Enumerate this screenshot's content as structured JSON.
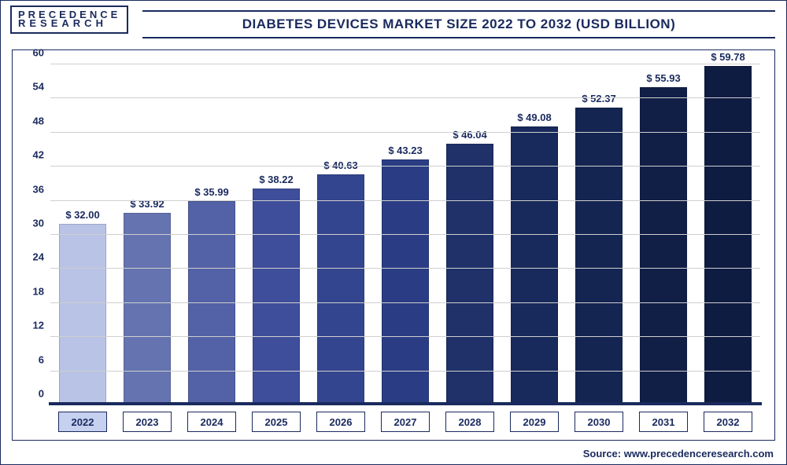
{
  "logo": {
    "line1": "PRECEDENCE",
    "line2": "RESEARCH"
  },
  "title": "DIABETES DEVICES MARKET SIZE 2022 TO 2032 (USD BILLION)",
  "source": "Source: www.precedenceresearch.com",
  "chart": {
    "type": "bar",
    "ylim": [
      0,
      60
    ],
    "ytick_step": 6,
    "yticks": [
      0,
      6,
      12,
      18,
      24,
      30,
      36,
      42,
      48,
      54,
      60
    ],
    "grid_color": "#cfcfcf",
    "baseline_color": "#1a2a5e",
    "background_color": "#ffffff",
    "title_fontsize": 17,
    "label_fontsize": 13,
    "bar_width": 0.72,
    "value_prefix": "$ ",
    "categories": [
      "2022",
      "2023",
      "2024",
      "2025",
      "2026",
      "2027",
      "2028",
      "2029",
      "2030",
      "2031",
      "2032"
    ],
    "values": [
      32.0,
      33.92,
      35.99,
      38.22,
      40.63,
      43.23,
      46.04,
      49.08,
      52.37,
      55.93,
      59.78
    ],
    "value_labels": [
      "$ 32.00",
      "$ 33.92",
      "$ 35.99",
      "$ 38.22",
      "$ 40.63",
      "$ 43.23",
      "$ 46.04",
      "$ 49.08",
      "$ 52.37",
      "$ 55.93",
      "$ 59.78"
    ],
    "bar_colors": [
      "#b8c3e6",
      "#6574b0",
      "#5362a6",
      "#3f4e9a",
      "#33458f",
      "#2a3d84",
      "#1f3168",
      "#182a5b",
      "#142551",
      "#111f47",
      "#0f1c42"
    ],
    "highlight_first_xaxis": true,
    "highlight_color": "#c6d0ef"
  }
}
